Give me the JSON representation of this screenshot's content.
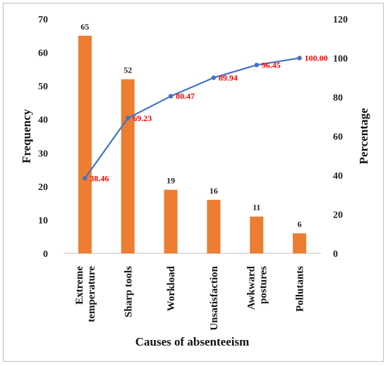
{
  "chart_data": {
    "type": "bar",
    "categories": [
      "Extreme temperature",
      "Sharp tools",
      "Workload",
      "Unsatisfaction",
      "Awkward postures",
      "Pollutants"
    ],
    "category_lines": [
      [
        "Extreme",
        "temperature"
      ],
      [
        "Sharp tools"
      ],
      [
        "Workload"
      ],
      [
        "Unsatisfaction"
      ],
      [
        "Awkward",
        "postures"
      ],
      [
        "Pollutants"
      ]
    ],
    "series": [
      {
        "name": "",
        "type": "bar",
        "axis": "left",
        "values": [
          65,
          52,
          19,
          16,
          11,
          6
        ]
      },
      {
        "name": "",
        "type": "line",
        "axis": "right",
        "values": [
          38.46,
          69.23,
          80.47,
          89.94,
          96.45,
          100.0
        ],
        "labels": [
          "38.46",
          "69.23",
          "80.47",
          "89.94",
          "96.45",
          "100.00"
        ]
      }
    ],
    "xlabel": "Causes of absenteeism",
    "ylabel": "Frequency",
    "y2label": "Percentage",
    "ylim": [
      0,
      70
    ],
    "y2lim": [
      0,
      120
    ],
    "yticks": [
      0,
      10,
      20,
      30,
      40,
      50,
      60,
      70
    ],
    "y2ticks": [
      0,
      20,
      40,
      60,
      80,
      100,
      120
    ],
    "grid": false,
    "legend": "none",
    "colors": {
      "bar": "#ED7D31",
      "line": "#4472C4",
      "line_label": "#FF0000"
    }
  }
}
